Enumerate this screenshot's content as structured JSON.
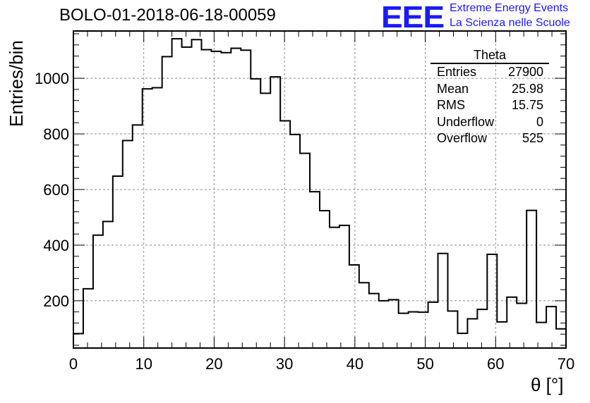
{
  "chart_data": {
    "type": "bar",
    "title": "BOLO-01-2018-06-18-00059",
    "xlabel": "θ [°]",
    "ylabel": "Entries/bin",
    "xlim": [
      0,
      70
    ],
    "ylim": [
      30,
      1170
    ],
    "xticks": [
      0,
      10,
      20,
      30,
      40,
      50,
      60,
      70
    ],
    "yticks": [
      200,
      400,
      600,
      800,
      1000
    ],
    "grid": true,
    "bin_width": 1.4,
    "bin_edges_start": 0,
    "values": [
      82,
      243,
      436,
      485,
      648,
      776,
      832,
      962,
      966,
      1078,
      1142,
      1112,
      1139,
      1103,
      1097,
      1092,
      1108,
      1101,
      998,
      946,
      1005,
      847,
      798,
      730,
      592,
      524,
      464,
      471,
      329,
      265,
      226,
      200,
      204,
      155,
      160,
      159,
      195,
      370,
      163,
      83,
      135,
      169,
      367,
      124,
      213,
      191,
      525,
      122,
      179,
      99
    ],
    "series": [
      {
        "name": "Theta"
      }
    ]
  },
  "stats_box": {
    "title": "Theta",
    "rows": [
      {
        "label": "Entries",
        "value": "27900"
      },
      {
        "label": "Mean",
        "value": "25.98"
      },
      {
        "label": "RMS",
        "value": "15.75"
      },
      {
        "label": "Underflow",
        "value": "0"
      },
      {
        "label": "Overflow",
        "value": "525"
      }
    ]
  },
  "logo": {
    "mark": "EEE",
    "line1": "Extreme Energy Events",
    "line2": "La Scienza nelle Scuole",
    "color": "#1a1aff"
  }
}
